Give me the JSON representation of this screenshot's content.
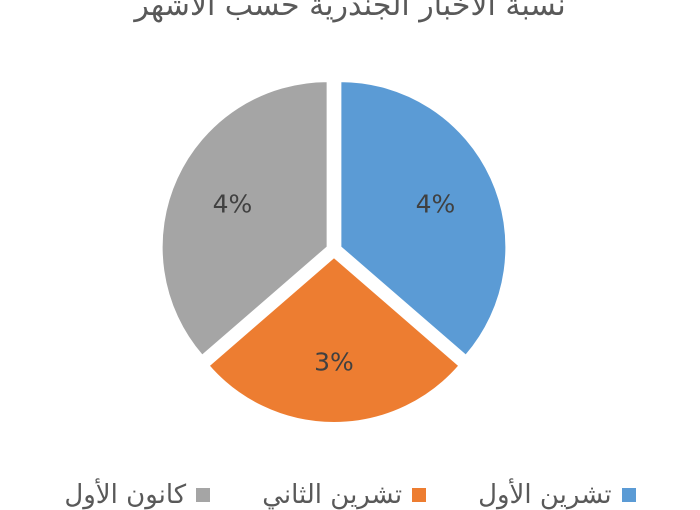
{
  "chart_data": {
    "type": "pie",
    "title": "نسبة الأخبار الجندرية حسب الأشهر",
    "categories": [
      "تشرين الأول",
      "تشرين الثاني",
      "كانون الأول"
    ],
    "values": [
      4,
      3,
      4
    ],
    "data_labels": [
      "4%",
      "3%",
      "4%"
    ],
    "colors": [
      "#5B9BD5",
      "#ED7D31",
      "#A5A5A5"
    ],
    "legend_position": "bottom",
    "exploded": true
  }
}
